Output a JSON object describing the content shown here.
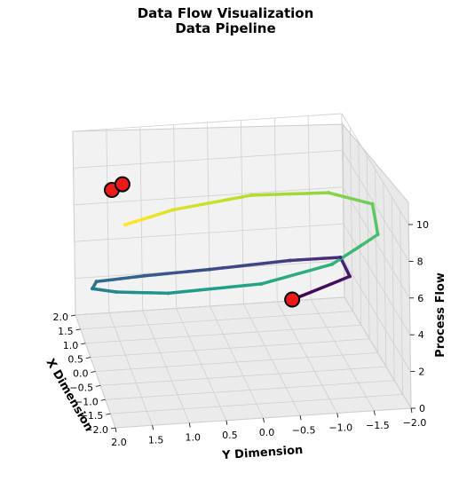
{
  "chart_data": {
    "type": "line3d",
    "title": "Data Flow Visualization",
    "subtitle": "Data Pipeline",
    "xlabel": "X Dimension",
    "ylabel": "Y Dimension",
    "zlabel": "Process Flow",
    "x_ticks": [
      "2.0",
      "1.5",
      "1.0",
      "0.5",
      "0.0",
      "−0.5",
      "−1.0",
      "−1.5",
      "−2.0"
    ],
    "y_ticks": [
      "2.0",
      "1.5",
      "1.0",
      "0.5",
      "0.0",
      "−0.5",
      "−1.0",
      "−1.5",
      "−2.0"
    ],
    "z_ticks": [
      "0",
      "2",
      "4",
      "6",
      "8",
      "10"
    ],
    "xlim": [
      -2,
      2
    ],
    "ylim": [
      -2,
      2
    ],
    "zlim": [
      0,
      10
    ],
    "grid": true,
    "colormap": "viridis",
    "curve": {
      "description_free": true,
      "t_range": [
        0,
        4.71
      ],
      "x": "2cos(t) approx",
      "y": "2sin(t) approx",
      "z": "linear in t"
    },
    "series": [
      {
        "points": [
          {
            "x": 0.0,
            "y": -0.8,
            "z": 3.2
          },
          {
            "x": 0.8,
            "y": -1.8,
            "z": 3.0
          },
          {
            "x": 1.8,
            "y": -1.9,
            "z": 2.5
          },
          {
            "x": 2.0,
            "y": -1.2,
            "z": 2.2
          },
          {
            "x": 2.0,
            "y": 0.0,
            "z": 2.0
          },
          {
            "x": 1.8,
            "y": 1.0,
            "z": 2.2
          },
          {
            "x": 1.2,
            "y": 1.8,
            "z": 3.0
          },
          {
            "x": 0.2,
            "y": 2.0,
            "z": 4.2
          },
          {
            "x": -0.8,
            "y": 1.8,
            "z": 5.5
          },
          {
            "x": -1.6,
            "y": 1.2,
            "z": 6.5
          },
          {
            "x": -2.0,
            "y": 0.0,
            "z": 7.3
          },
          {
            "x": -1.8,
            "y": -1.0,
            "z": 7.8
          },
          {
            "x": -1.0,
            "y": -1.8,
            "z": 8.0
          },
          {
            "x": 0.2,
            "y": -2.0,
            "z": 7.8
          },
          {
            "x": 1.2,
            "y": -1.6,
            "z": 7.0
          },
          {
            "x": 1.8,
            "y": -0.6,
            "z": 6.2
          },
          {
            "x": 1.6,
            "y": 0.6,
            "z": 6.0
          },
          {
            "x": 1.0,
            "y": 1.4,
            "z": 6.3
          }
        ]
      }
    ],
    "markers": [
      {
        "x": 0.0,
        "y": -0.8,
        "z": 3.2,
        "color": "#ee1a1a"
      },
      {
        "x": 0.9,
        "y": 1.6,
        "z": 8.4,
        "color": "#ee1a1a"
      },
      {
        "x": 1.2,
        "y": 1.4,
        "z": 8.2,
        "color": "#ee1a1a"
      }
    ]
  }
}
